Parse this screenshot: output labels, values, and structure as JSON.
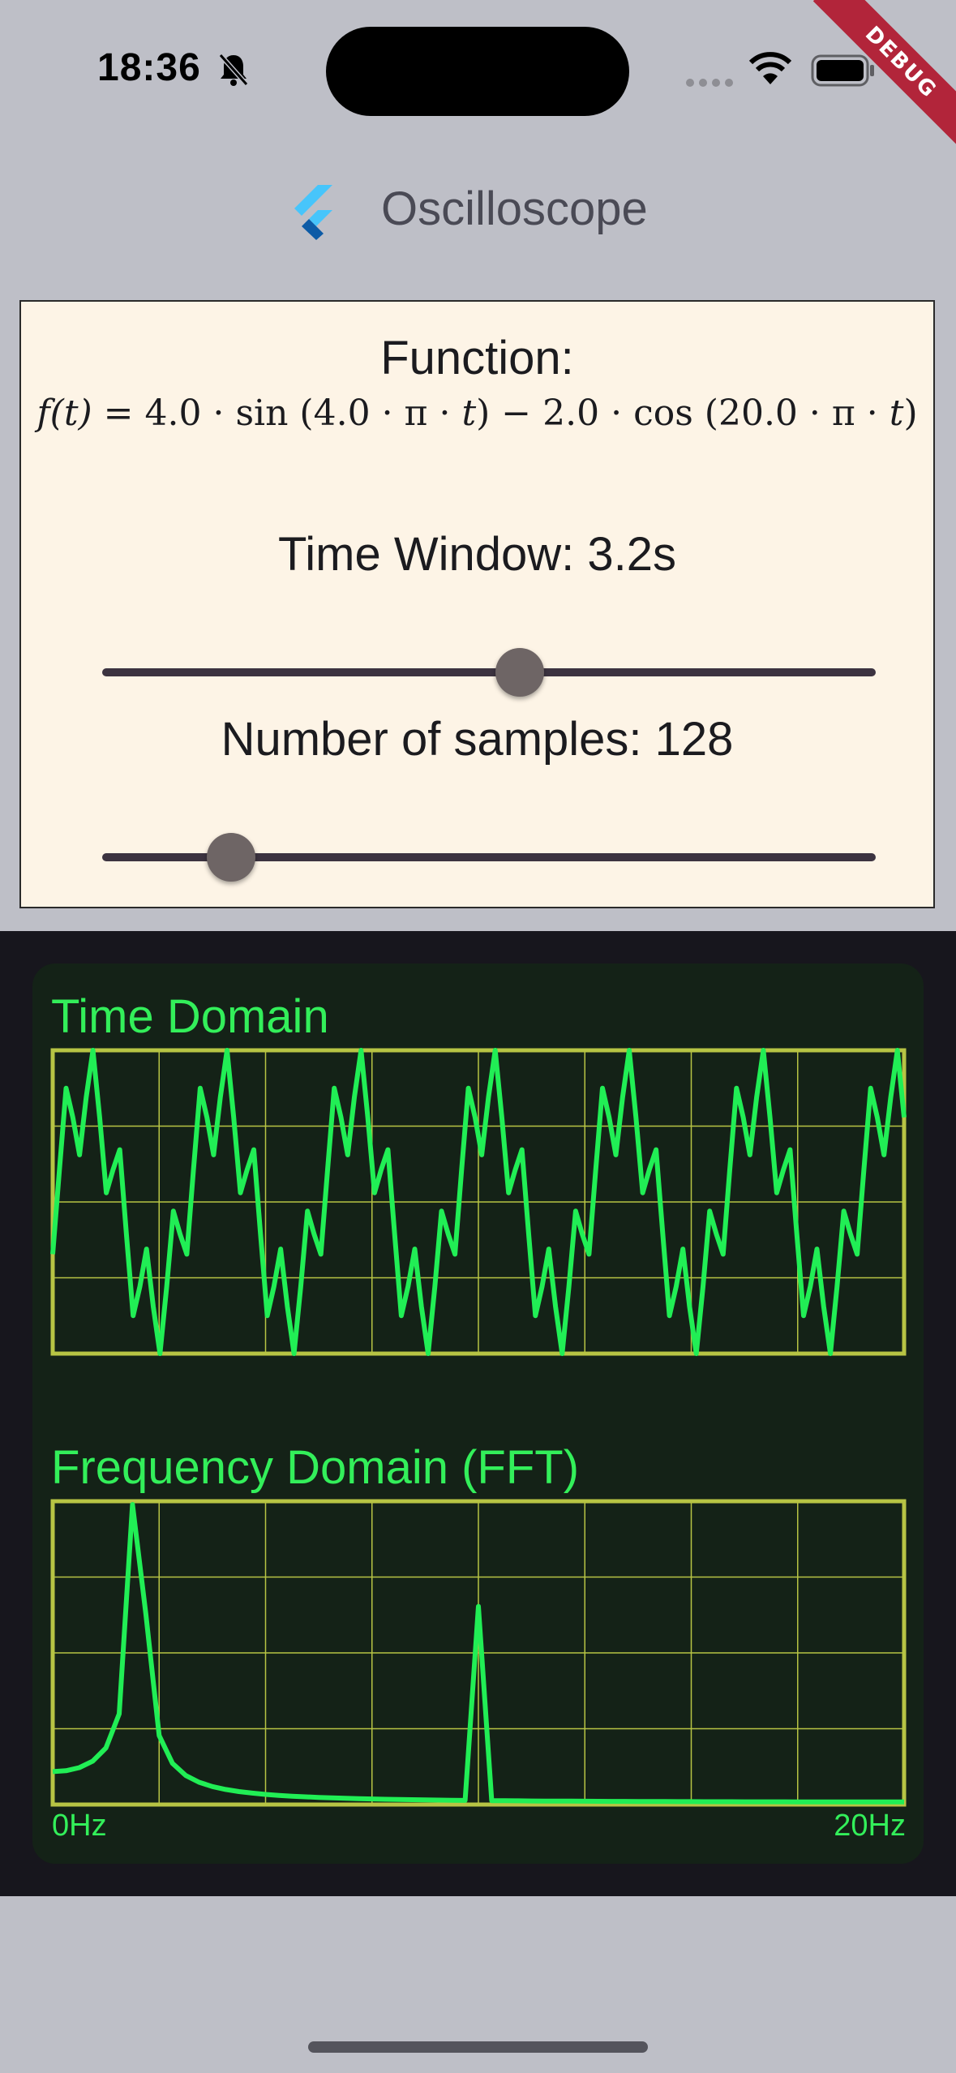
{
  "status_bar": {
    "time": "18:36",
    "icons": [
      "bell-slash-icon",
      "cellular-dots-icon",
      "wifi-icon",
      "battery-icon"
    ],
    "debug_banner": "DEBUG"
  },
  "app_bar": {
    "logo": "flutter-logo-icon",
    "title": "Oscilloscope"
  },
  "controls": {
    "function_label": "Function:",
    "formula": {
      "lhs": "f(t) = ",
      "a": "4.0",
      "f1": "4.0",
      "b": "2.0",
      "f2": "20.0"
    },
    "time_window": {
      "label": "Time Window: 3.2s",
      "value": 3.2,
      "fraction": 0.54
    },
    "samples": {
      "label": "Number of samples: 128",
      "value": 128,
      "fraction": 0.167
    }
  },
  "scope": {
    "time_title": "Time Domain",
    "freq_title": "Frequency Domain (FFT)",
    "freq_min_label": "0Hz",
    "freq_max_label": "20Hz",
    "colors": {
      "trace": "#21ee55",
      "grid": "#b7c444",
      "background": "#142217"
    }
  }
}
